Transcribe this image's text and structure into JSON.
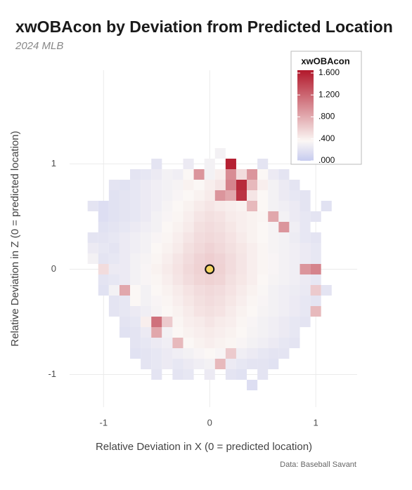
{
  "chart_data": {
    "type": "heatmap",
    "title": "xwOBAcon by Deviation from Predicted Location",
    "subtitle": "2024 MLB",
    "x_label": "Relative Deviation in X (0 = predicted location)",
    "y_label": "Relative Deviation in Z (0 = predicted location)",
    "caption": "Data: Baseball Savant",
    "legend_title": "xwOBAcon",
    "legend_position": "top-right",
    "grid": true,
    "xlim": [
      -1.32,
      1.39
    ],
    "ylim": [
      -1.31,
      1.89
    ],
    "xticks": [
      -1,
      0,
      1
    ],
    "yticks": [
      -1,
      0,
      1
    ],
    "colorbar_ticks": [
      {
        "value": 0,
        "label": ".000"
      },
      {
        "value": 0.4,
        "label": ".400"
      },
      {
        "value": 0.8,
        "label": ".800"
      },
      {
        "value": 1.2,
        "label": "1.200"
      },
      {
        "value": 1.6,
        "label": "1.600"
      }
    ],
    "colorscale": [
      {
        "value": 0,
        "color": "#c6cbef"
      },
      {
        "value": 0.35,
        "color": "#fbf7f5"
      },
      {
        "value": 1.6,
        "color": "#b2182b"
      }
    ],
    "point": {
      "x": 0,
      "y": 0,
      "color": "#f5d562"
    },
    "x": [
      -1.2,
      -1.1,
      -1.0,
      -0.9,
      -0.8,
      -0.7,
      -0.6,
      -0.5,
      -0.4,
      -0.3,
      -0.2,
      -0.1,
      0,
      0.1,
      0.2,
      0.3,
      0.4,
      0.5,
      0.6,
      0.7,
      0.8,
      0.9,
      1.0,
      1.1,
      1.2
    ],
    "y": [
      1.1,
      1.0,
      0.9,
      0.8,
      0.7,
      0.6,
      0.5,
      0.4,
      0.3,
      0.2,
      0.1,
      0,
      -0.1,
      -0.2,
      -0.3,
      -0.4,
      -0.5,
      -0.6,
      -0.7,
      -0.8,
      -0.9,
      -1.0,
      -1.1
    ],
    "values": [
      [
        null,
        null,
        null,
        null,
        null,
        null,
        null,
        null,
        null,
        null,
        null,
        null,
        null,
        0.3,
        null,
        null,
        null,
        null,
        null,
        null,
        null,
        null,
        null,
        null,
        null
      ],
      [
        null,
        null,
        null,
        null,
        null,
        null,
        null,
        0.2,
        null,
        null,
        0.25,
        null,
        0.3,
        null,
        1.55,
        null,
        null,
        0.2,
        null,
        null,
        null,
        null,
        null,
        null,
        null
      ],
      [
        null,
        null,
        null,
        null,
        null,
        0.2,
        0.22,
        0.25,
        0.3,
        0.28,
        0.35,
        0.9,
        0.3,
        0.4,
        0.95,
        0.5,
        0.9,
        0.35,
        0.25,
        0.2,
        null,
        null,
        null,
        null,
        null
      ],
      [
        null,
        null,
        null,
        0.2,
        0.18,
        0.22,
        0.25,
        0.28,
        0.3,
        0.32,
        0.38,
        0.35,
        0.4,
        0.45,
        1.0,
        1.5,
        0.7,
        0.4,
        0.3,
        0.25,
        0.2,
        null,
        null,
        null,
        null
      ],
      [
        null,
        null,
        null,
        0.18,
        0.2,
        0.22,
        0.25,
        0.28,
        0.3,
        0.33,
        0.35,
        0.38,
        0.42,
        0.9,
        0.8,
        1.45,
        0.45,
        0.35,
        0.3,
        0.25,
        0.22,
        0.2,
        null,
        null,
        null
      ],
      [
        null,
        0.2,
        0.15,
        0.18,
        0.2,
        0.22,
        0.25,
        0.28,
        0.32,
        0.35,
        0.38,
        0.42,
        0.45,
        0.42,
        0.4,
        0.38,
        0.7,
        0.35,
        0.3,
        0.28,
        0.25,
        0.2,
        null,
        0.18,
        null
      ],
      [
        null,
        null,
        0.15,
        0.18,
        0.2,
        0.22,
        0.25,
        0.3,
        0.33,
        0.36,
        0.4,
        0.45,
        0.48,
        0.46,
        0.42,
        0.4,
        0.38,
        0.36,
        0.8,
        0.3,
        0.25,
        0.22,
        0.2,
        null,
        null
      ],
      [
        null,
        null,
        0.18,
        0.2,
        0.22,
        0.25,
        0.28,
        0.3,
        0.35,
        0.38,
        0.42,
        0.48,
        0.5,
        0.48,
        0.44,
        0.4,
        0.38,
        0.35,
        0.32,
        0.9,
        0.28,
        0.22,
        null,
        null,
        null
      ],
      [
        null,
        0.2,
        0.2,
        0.22,
        0.25,
        0.28,
        0.3,
        0.33,
        0.36,
        0.4,
        0.45,
        0.5,
        0.52,
        0.5,
        0.46,
        0.42,
        0.38,
        0.35,
        0.32,
        0.3,
        0.26,
        0.22,
        0.2,
        null,
        null
      ],
      [
        null,
        0.25,
        0.22,
        0.2,
        0.25,
        0.28,
        0.3,
        0.35,
        0.38,
        0.42,
        0.48,
        0.52,
        0.55,
        0.52,
        0.48,
        0.44,
        0.4,
        0.36,
        0.32,
        0.3,
        0.28,
        0.25,
        0.22,
        null,
        null
      ],
      [
        null,
        0.3,
        0.2,
        0.22,
        0.25,
        0.3,
        0.32,
        0.36,
        0.4,
        0.45,
        0.5,
        0.55,
        0.58,
        0.55,
        0.5,
        0.45,
        0.4,
        0.36,
        0.33,
        0.3,
        0.28,
        0.25,
        0.22,
        null,
        null
      ],
      [
        null,
        null,
        0.5,
        0.25,
        0.25,
        0.3,
        0.33,
        0.38,
        0.42,
        0.46,
        0.52,
        0.56,
        0.6,
        0.56,
        0.5,
        0.45,
        0.4,
        0.36,
        0.33,
        0.3,
        0.28,
        0.9,
        1.0,
        null,
        null
      ],
      [
        null,
        null,
        0.2,
        0.22,
        0.25,
        0.3,
        0.33,
        0.36,
        0.4,
        0.45,
        0.5,
        0.54,
        0.56,
        0.54,
        0.48,
        0.44,
        0.4,
        0.35,
        0.32,
        0.3,
        0.28,
        0.25,
        0.22,
        null,
        null
      ],
      [
        null,
        null,
        0.18,
        0.3,
        0.8,
        0.35,
        0.3,
        0.35,
        0.38,
        0.42,
        0.46,
        0.5,
        0.52,
        0.5,
        0.46,
        0.42,
        0.38,
        0.34,
        0.3,
        0.28,
        0.26,
        0.24,
        0.6,
        0.2,
        null
      ],
      [
        null,
        null,
        null,
        0.2,
        0.22,
        0.35,
        0.3,
        0.33,
        0.36,
        0.4,
        0.44,
        0.48,
        0.5,
        0.48,
        0.44,
        0.4,
        0.36,
        0.33,
        0.3,
        0.28,
        0.25,
        0.22,
        0.2,
        null,
        null
      ],
      [
        null,
        null,
        null,
        0.2,
        0.22,
        0.25,
        0.28,
        0.32,
        0.35,
        0.38,
        0.42,
        0.46,
        0.48,
        0.46,
        0.42,
        0.38,
        0.35,
        0.32,
        0.3,
        0.28,
        0.25,
        0.22,
        0.7,
        null,
        null
      ],
      [
        null,
        null,
        null,
        null,
        0.2,
        0.22,
        0.4,
        1.1,
        0.6,
        0.36,
        0.4,
        0.42,
        0.45,
        0.42,
        0.4,
        0.36,
        0.33,
        0.3,
        0.28,
        0.25,
        0.22,
        0.2,
        null,
        null,
        null
      ],
      [
        null,
        null,
        null,
        null,
        0.18,
        0.2,
        0.25,
        0.8,
        0.3,
        0.35,
        0.38,
        0.4,
        0.42,
        0.4,
        0.38,
        0.35,
        0.32,
        0.3,
        0.28,
        0.25,
        0.22,
        null,
        null,
        null,
        null
      ],
      [
        null,
        null,
        null,
        null,
        null,
        0.2,
        0.22,
        0.25,
        0.28,
        0.7,
        0.35,
        0.38,
        0.4,
        0.38,
        0.36,
        0.33,
        0.3,
        0.28,
        0.25,
        0.22,
        0.2,
        null,
        null,
        null,
        null
      ],
      [
        null,
        null,
        null,
        null,
        null,
        0.18,
        0.2,
        0.22,
        0.25,
        0.28,
        0.3,
        0.33,
        0.35,
        0.33,
        0.6,
        0.28,
        0.25,
        0.22,
        0.2,
        0.2,
        null,
        null,
        null,
        null,
        null
      ],
      [
        null,
        null,
        null,
        null,
        null,
        null,
        0.2,
        0.22,
        0.25,
        0.22,
        0.25,
        0.28,
        0.3,
        0.7,
        0.25,
        0.22,
        0.2,
        0.2,
        0.18,
        null,
        null,
        null,
        null,
        null,
        null
      ],
      [
        null,
        null,
        null,
        null,
        null,
        null,
        null,
        0.2,
        null,
        0.2,
        0.22,
        null,
        0.25,
        null,
        0.2,
        0.18,
        null,
        0.2,
        null,
        null,
        null,
        null,
        null,
        null,
        null
      ],
      [
        null,
        null,
        null,
        null,
        null,
        null,
        null,
        null,
        null,
        null,
        null,
        null,
        null,
        null,
        null,
        null,
        0.15,
        null,
        null,
        null,
        null,
        null,
        null,
        null,
        null
      ]
    ]
  }
}
